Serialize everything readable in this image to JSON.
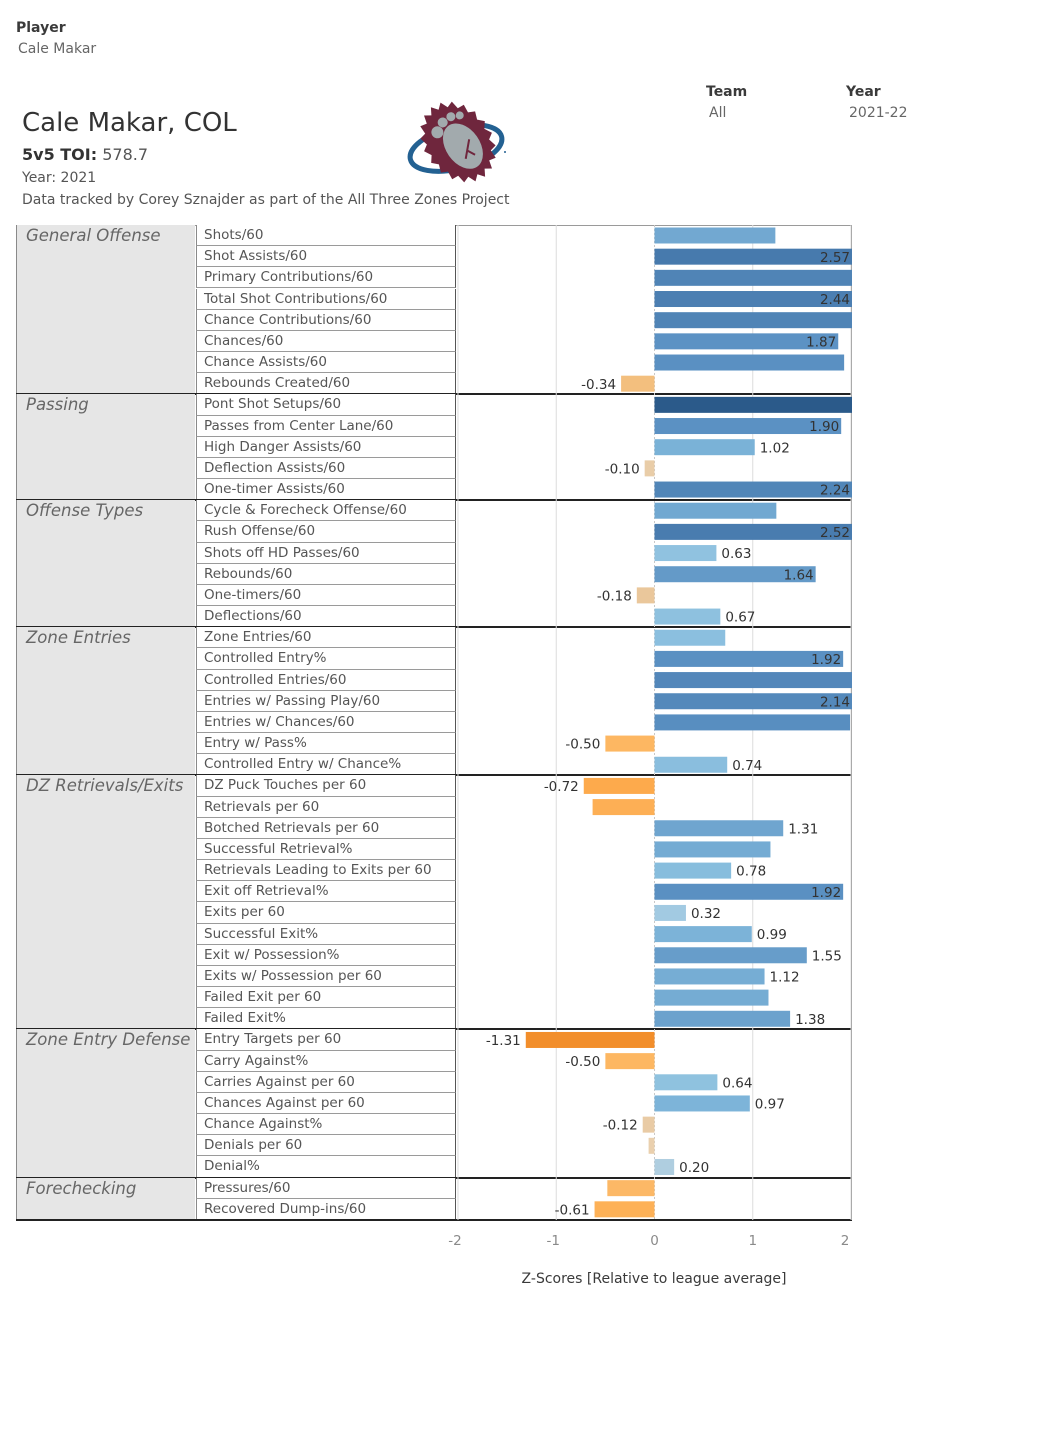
{
  "filters": {
    "player": {
      "title": "Player",
      "value": "Cale Makar"
    },
    "team": {
      "title": "Team",
      "value": "All"
    },
    "year": {
      "title": "Year",
      "value": "2021-22"
    }
  },
  "header": {
    "title": "Cale Makar, COL",
    "toi_label": "5v5 TOI:",
    "toi_value": "578.7",
    "year_line": "Year: 2021",
    "credit": "Data tracked by Corey Sznajder as part of the All Three Zones Project",
    "logo": "colorado-avalanche-logo"
  },
  "colors": {
    "positive_stops": [
      [
        0,
        "#c6d4db"
      ],
      [
        0.3,
        "#a3cbe2"
      ],
      [
        0.7,
        "#8cc0df"
      ],
      [
        1.0,
        "#7bb3d8"
      ],
      [
        1.3,
        "#6fa5cf"
      ],
      [
        1.9,
        "#5b91c3"
      ],
      [
        2.5,
        "#4a7db0"
      ],
      [
        3.3,
        "#2b5a8a"
      ]
    ],
    "negative_stops": [
      [
        0,
        "#ebd5b8"
      ],
      [
        -0.15,
        "#e8c9a0"
      ],
      [
        -0.5,
        "#fdb762"
      ],
      [
        -0.72,
        "#fdaa4c"
      ],
      [
        -1.31,
        "#f28e2b"
      ]
    ]
  },
  "chart_data": {
    "type": "bar",
    "orientation": "horizontal",
    "title": "",
    "xlabel": "Z-Scores [Relative to league average]",
    "ylabel": "",
    "xlim": [
      -2.01,
      2.01
    ],
    "xticks": [
      -2,
      -1,
      0,
      1,
      2
    ],
    "xtick_labels": [
      "-2",
      "-1",
      "0",
      "1",
      "2"
    ],
    "grid": "vertical",
    "legend": "none",
    "sections": [
      {
        "name": "General Offense",
        "rows": [
          {
            "metric": "Shots/60",
            "value": 1.23,
            "label": null
          },
          {
            "metric": "Shot Assists/60",
            "value": 2.57,
            "label": "2.57"
          },
          {
            "metric": "Primary Contributions/60",
            "value": 2.3,
            "label": null
          },
          {
            "metric": "Total Shot Contributions/60",
            "value": 2.44,
            "label": "2.44"
          },
          {
            "metric": "Chance Contributions/60",
            "value": 2.3,
            "label": null
          },
          {
            "metric": "Chances/60",
            "value": 1.87,
            "label": "1.87"
          },
          {
            "metric": "Chance Assists/60",
            "value": 1.93,
            "label": null
          },
          {
            "metric": "Rebounds Created/60",
            "value": -0.34,
            "label": "-0.34"
          }
        ]
      },
      {
        "name": "Passing",
        "rows": [
          {
            "metric": "Pont Shot Setups/60",
            "value": 3.3,
            "label": null
          },
          {
            "metric": "Passes from Center Lane/60",
            "value": 1.9,
            "label": "1.90"
          },
          {
            "metric": "High Danger Assists/60",
            "value": 1.02,
            "label": "1.02"
          },
          {
            "metric": "Deflection Assists/60",
            "value": -0.1,
            "label": "-0.10"
          },
          {
            "metric": "One-timer Assists/60",
            "value": 2.24,
            "label": "2.24"
          }
        ]
      },
      {
        "name": "Offense Types",
        "rows": [
          {
            "metric": "Cycle & Forecheck Offense/60",
            "value": 1.24,
            "label": null
          },
          {
            "metric": "Rush Offense/60",
            "value": 2.52,
            "label": "2.52"
          },
          {
            "metric": "Shots off HD Passes/60",
            "value": 0.63,
            "label": "0.63"
          },
          {
            "metric": "Rebounds/60",
            "value": 1.64,
            "label": "1.64"
          },
          {
            "metric": "One-timers/60",
            "value": -0.18,
            "label": "-0.18"
          },
          {
            "metric": "Deflections/60",
            "value": 0.67,
            "label": "0.67"
          }
        ]
      },
      {
        "name": "Zone Entries",
        "rows": [
          {
            "metric": "Zone Entries/60",
            "value": 0.72,
            "label": null
          },
          {
            "metric": "Controlled Entry%",
            "value": 1.92,
            "label": "1.92"
          },
          {
            "metric": "Controlled Entries/60",
            "value": 2.2,
            "label": null
          },
          {
            "metric": "Entries w/ Passing Play/60",
            "value": 2.14,
            "label": "2.14"
          },
          {
            "metric": "Entries w/ Chances/60",
            "value": 1.99,
            "label": null
          },
          {
            "metric": "Entry w/ Pass%",
            "value": -0.5,
            "label": "-0.50"
          },
          {
            "metric": "Controlled Entry w/ Chance%",
            "value": 0.74,
            "label": "0.74"
          }
        ]
      },
      {
        "name": "DZ Retrievals/Exits",
        "rows": [
          {
            "metric": "DZ Puck Touches per 60",
            "value": -0.72,
            "label": "-0.72"
          },
          {
            "metric": "Retrievals per 60",
            "value": -0.63,
            "label": null
          },
          {
            "metric": "Botched Retrievals per 60",
            "value": 1.31,
            "label": "1.31"
          },
          {
            "metric": "Successful Retrieval%",
            "value": 1.18,
            "label": null
          },
          {
            "metric": "Retrievals Leading to Exits per 60",
            "value": 0.78,
            "label": "0.78"
          },
          {
            "metric": "Exit off Retrieval%",
            "value": 1.92,
            "label": "1.92"
          },
          {
            "metric": "Exits per 60",
            "value": 0.32,
            "label": "0.32"
          },
          {
            "metric": "Successful Exit%",
            "value": 0.99,
            "label": "0.99"
          },
          {
            "metric": "Exit w/ Possession%",
            "value": 1.55,
            "label": "1.55"
          },
          {
            "metric": "Exits w/ Possession per 60",
            "value": 1.12,
            "label": "1.12"
          },
          {
            "metric": "Failed Exit per 60",
            "value": 1.16,
            "label": null
          },
          {
            "metric": "Failed Exit%",
            "value": 1.38,
            "label": "1.38"
          }
        ]
      },
      {
        "name": "Zone Entry Defense",
        "rows": [
          {
            "metric": "Entry Targets per 60",
            "value": -1.31,
            "label": "-1.31"
          },
          {
            "metric": "Carry Against%",
            "value": -0.5,
            "label": "-0.50"
          },
          {
            "metric": "Carries Against per 60",
            "value": 0.64,
            "label": "0.64"
          },
          {
            "metric": "Chances Against per 60",
            "value": 0.97,
            "label": "0.97"
          },
          {
            "metric": "Chance Against%",
            "value": -0.12,
            "label": "-0.12"
          },
          {
            "metric": "Denials per 60",
            "value": -0.06,
            "label": null
          },
          {
            "metric": "Denial%",
            "value": 0.2,
            "label": "0.20"
          }
        ]
      },
      {
        "name": "Forechecking",
        "rows": [
          {
            "metric": "Pressures/60",
            "value": -0.48,
            "label": null
          },
          {
            "metric": "Recovered Dump-ins/60",
            "value": -0.61,
            "label": "-0.61"
          }
        ]
      }
    ]
  }
}
